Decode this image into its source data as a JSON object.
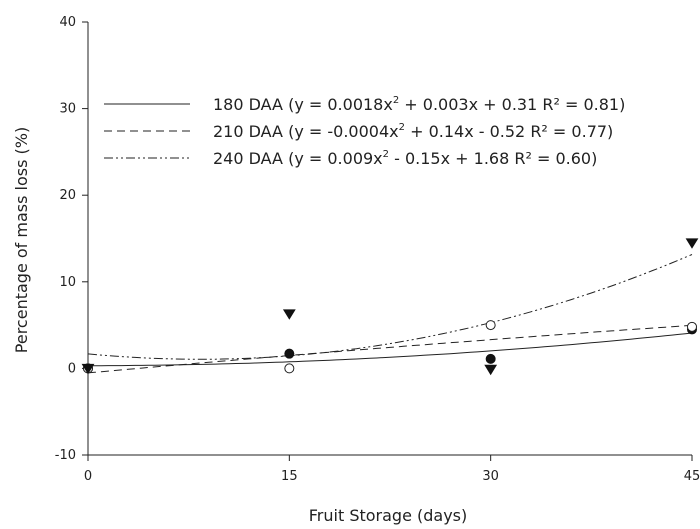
{
  "chart_data": {
    "type": "scatter",
    "title": "",
    "xlabel": "Fruit Storage (days)",
    "ylabel": "Percentage of mass loss (%)",
    "xlim": [
      0,
      45
    ],
    "ylim": [
      -10,
      40
    ],
    "xticks": [
      0,
      15,
      30,
      45
    ],
    "yticks": [
      -10,
      0,
      10,
      20,
      30,
      40
    ],
    "grid": false,
    "legend_position": "top-center",
    "series": [
      {
        "name": "180 DAA",
        "marker": "filled-circle",
        "line_style": "solid",
        "x": [
          0,
          15,
          30,
          45
        ],
        "y": [
          0.0,
          1.7,
          1.1,
          4.5
        ],
        "fit": {
          "a": 0.0018,
          "b": 0.003,
          "c": 0.31
        },
        "legend_label": {
          "pre": "180 DAA (y = 0.0018x",
          "sup": "2",
          "post": " + 0.003x + 0.31  R² = 0.81)"
        }
      },
      {
        "name": "210 DAA",
        "marker": "open-circle",
        "line_style": "dashed",
        "x": [
          0,
          15,
          30,
          45
        ],
        "y": [
          0.0,
          0.0,
          5.0,
          4.8
        ],
        "fit": {
          "a": -0.0004,
          "b": 0.14,
          "c": -0.52
        },
        "legend_label": {
          "pre": "210 DAA (y = -0.0004x",
          "sup": "2",
          "post": " + 0.14x - 0.52  R² = 0.77)"
        }
      },
      {
        "name": "240 DAA",
        "marker": "filled-triangle-down",
        "line_style": "dash-dot-dot",
        "x": [
          0,
          15,
          30,
          45
        ],
        "y": [
          0.0,
          6.3,
          -0.1,
          14.5
        ],
        "fit": {
          "a": 0.009,
          "b": -0.15,
          "c": 1.68
        },
        "legend_label": {
          "pre": "240 DAA (y = 0.009x",
          "sup": "2",
          "post": " - 0.15x + 1.68  R² = 0.60)"
        }
      }
    ]
  }
}
